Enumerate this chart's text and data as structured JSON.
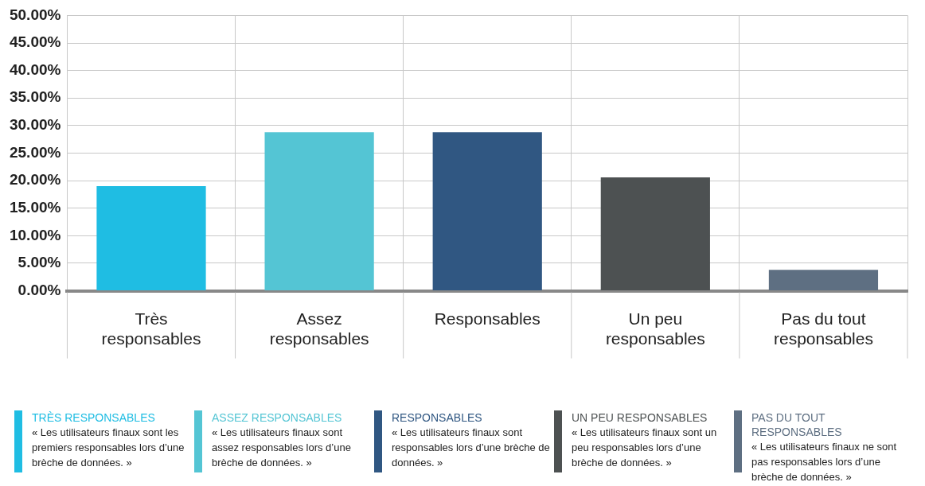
{
  "chart_data": {
    "type": "bar",
    "categories": [
      "Très responsables",
      "Assez responsables",
      "Responsables",
      "Un peu responsables",
      "Pas du tout responsables"
    ],
    "values": [
      19,
      28.8,
      28.8,
      20.6,
      3.8
    ],
    "colors": [
      "#1fbde3",
      "#54c5d4",
      "#305782",
      "#4d5152",
      "#5e6f82"
    ],
    "ylim": [
      0,
      50
    ],
    "yticks": [
      {
        "value": 0,
        "label": "0.00%"
      },
      {
        "value": 5,
        "label": "5.00%"
      },
      {
        "value": 10,
        "label": "10.00%"
      },
      {
        "value": 15,
        "label": "15.00%"
      },
      {
        "value": 20,
        "label": "20.00%"
      },
      {
        "value": 25,
        "label": "25.00%"
      },
      {
        "value": 30,
        "label": "30.00%"
      },
      {
        "value": 35,
        "label": "35.00%"
      },
      {
        "value": 40,
        "label": "40.00%"
      },
      {
        "value": 45,
        "label": "45.00%"
      },
      {
        "value": 50,
        "label": "50.00%"
      }
    ],
    "grid": true,
    "annotations": [
      "TRÈS RESPONSABLES",
      "« Les utilisateurs finaux sont les premiers responsables lors d’une brèche de données. »",
      "ASSEZ RESPONSABLES",
      "« Les utilisateurs finaux sont assez responsables lors d’une brèche de données. »",
      "RESPONSABLES",
      "« Les utilisateurs finaux sont responsables lors d’une brèche de données. »",
      "UN PEU RESPONSABLES",
      "« Les utilisateurs finaux sont un peu responsables lors d’une brèche de données. »",
      "PAS DU TOUT RESPONSABLES",
      "« Les utilisateurs finaux ne sont pas responsables lors d’une brèche de données. »"
    ]
  }
}
